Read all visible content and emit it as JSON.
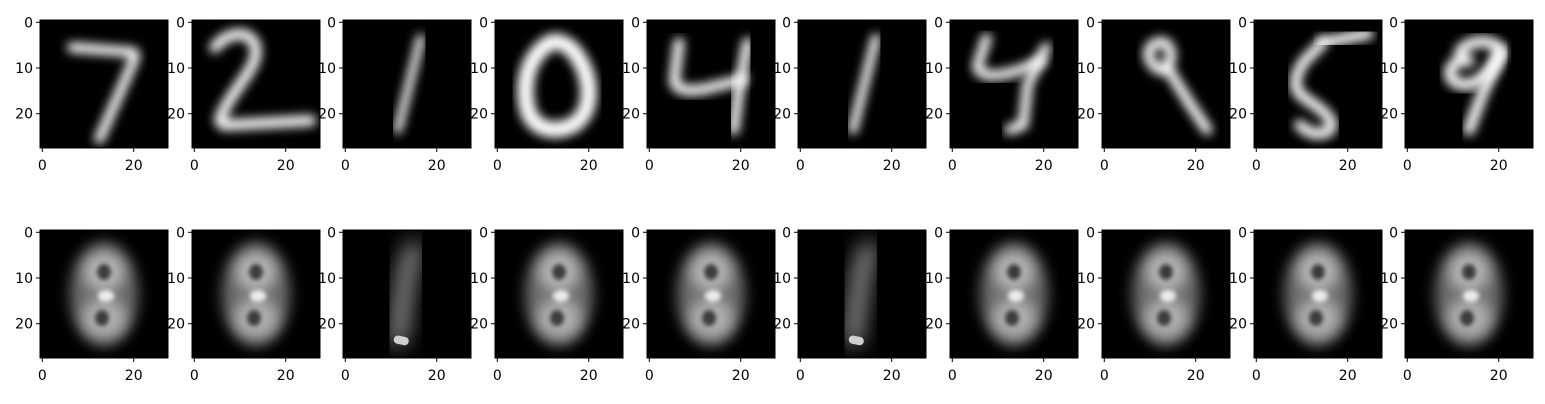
{
  "chart_data": {
    "type": "image-grid",
    "rows": 2,
    "columns": 10,
    "colormap": "gray",
    "image_size": [
      28,
      28
    ],
    "xticks": [
      0,
      20
    ],
    "yticks": [
      0,
      10,
      20
    ],
    "xtick_labels": [
      "0",
      "20"
    ],
    "ytick_labels": [
      "0",
      "10",
      "20"
    ],
    "top_row": {
      "name": "",
      "digits": [
        "7",
        "2",
        "1",
        "0",
        "4",
        "1",
        "4",
        "9",
        "5",
        "9"
      ]
    },
    "bottom_row": {
      "name": "",
      "shapes": [
        "blur",
        "blur",
        "one",
        "blur",
        "blur",
        "one",
        "blur",
        "blur",
        "blur",
        "blur"
      ]
    }
  }
}
